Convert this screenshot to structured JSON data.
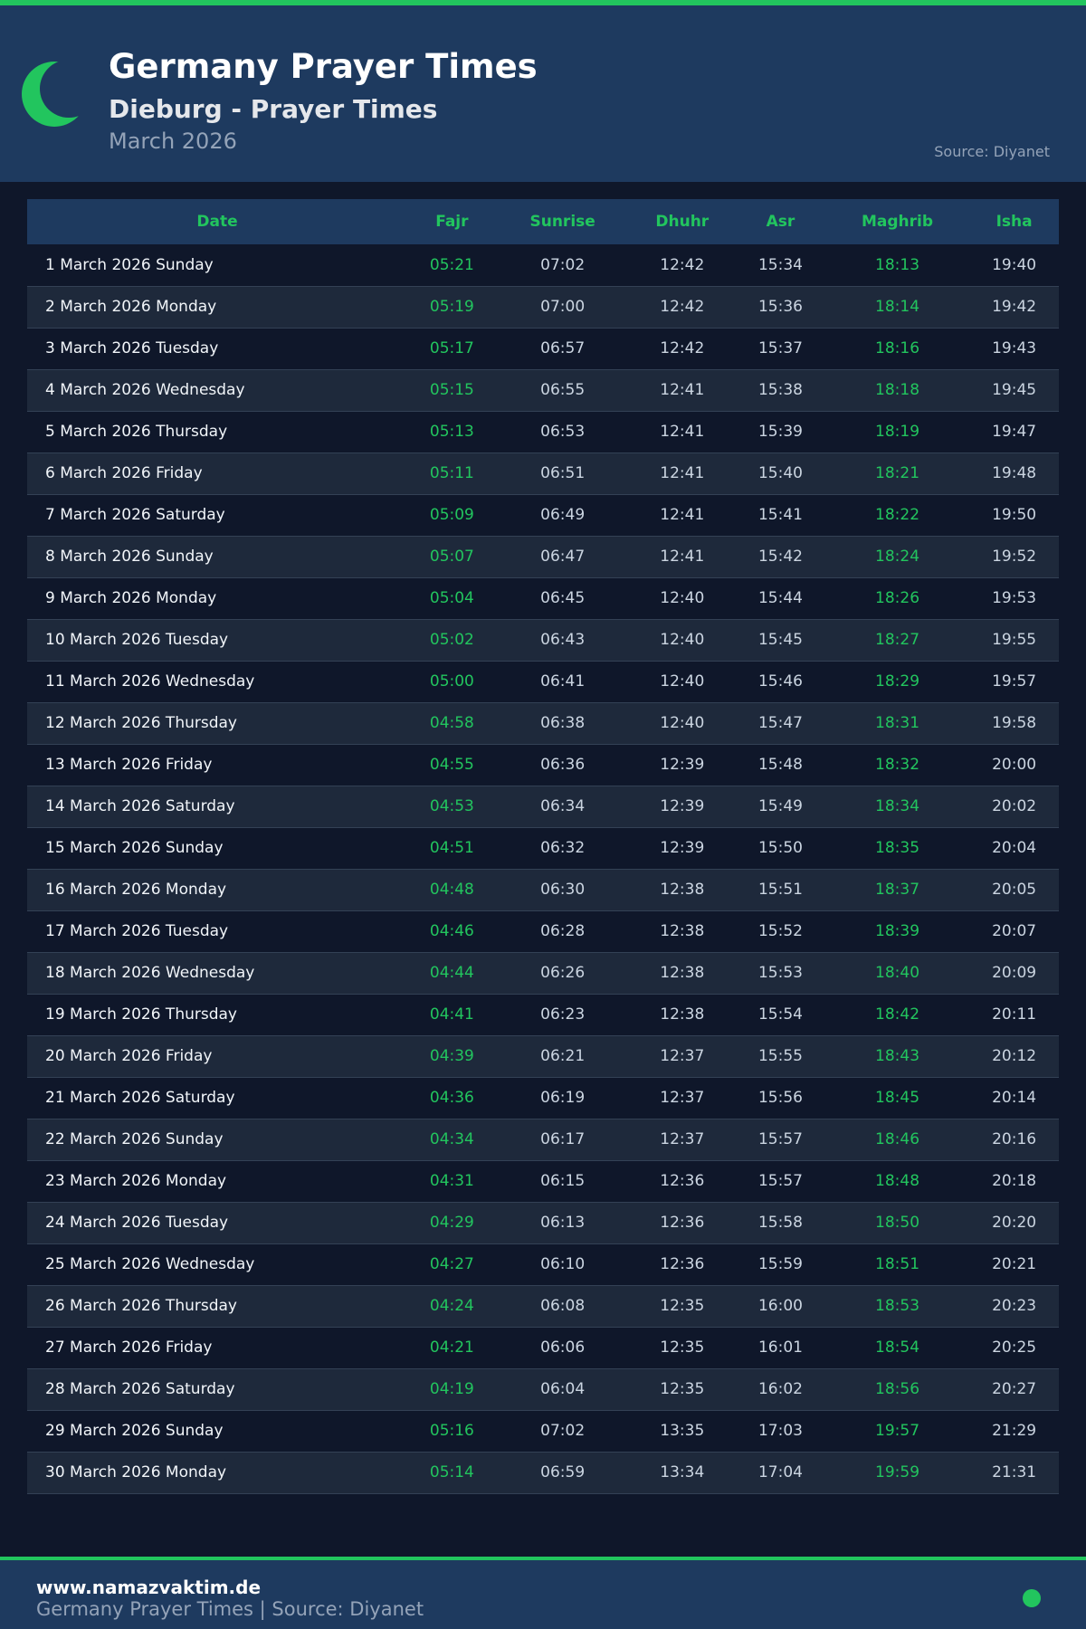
{
  "header": {
    "title": "Germany Prayer Times",
    "subtitle": "Dieburg - Prayer Times",
    "month": "March 2026",
    "source": "Source: Diyanet",
    "icon": "crescent-moon-icon"
  },
  "colors": {
    "accent": "#22c55e",
    "header_bg": "#1e3a5f",
    "page_bg": "#0f172a"
  },
  "table": {
    "columns": [
      "Date",
      "Fajr",
      "Sunrise",
      "Dhuhr",
      "Asr",
      "Maghrib",
      "Isha"
    ],
    "rows": [
      [
        "1 March 2026 Sunday",
        "05:21",
        "07:02",
        "12:42",
        "15:34",
        "18:13",
        "19:40"
      ],
      [
        "2 March 2026 Monday",
        "05:19",
        "07:00",
        "12:42",
        "15:36",
        "18:14",
        "19:42"
      ],
      [
        "3 March 2026 Tuesday",
        "05:17",
        "06:57",
        "12:42",
        "15:37",
        "18:16",
        "19:43"
      ],
      [
        "4 March 2026 Wednesday",
        "05:15",
        "06:55",
        "12:41",
        "15:38",
        "18:18",
        "19:45"
      ],
      [
        "5 March 2026 Thursday",
        "05:13",
        "06:53",
        "12:41",
        "15:39",
        "18:19",
        "19:47"
      ],
      [
        "6 March 2026 Friday",
        "05:11",
        "06:51",
        "12:41",
        "15:40",
        "18:21",
        "19:48"
      ],
      [
        "7 March 2026 Saturday",
        "05:09",
        "06:49",
        "12:41",
        "15:41",
        "18:22",
        "19:50"
      ],
      [
        "8 March 2026 Sunday",
        "05:07",
        "06:47",
        "12:41",
        "15:42",
        "18:24",
        "19:52"
      ],
      [
        "9 March 2026 Monday",
        "05:04",
        "06:45",
        "12:40",
        "15:44",
        "18:26",
        "19:53"
      ],
      [
        "10 March 2026 Tuesday",
        "05:02",
        "06:43",
        "12:40",
        "15:45",
        "18:27",
        "19:55"
      ],
      [
        "11 March 2026 Wednesday",
        "05:00",
        "06:41",
        "12:40",
        "15:46",
        "18:29",
        "19:57"
      ],
      [
        "12 March 2026 Thursday",
        "04:58",
        "06:38",
        "12:40",
        "15:47",
        "18:31",
        "19:58"
      ],
      [
        "13 March 2026 Friday",
        "04:55",
        "06:36",
        "12:39",
        "15:48",
        "18:32",
        "20:00"
      ],
      [
        "14 March 2026 Saturday",
        "04:53",
        "06:34",
        "12:39",
        "15:49",
        "18:34",
        "20:02"
      ],
      [
        "15 March 2026 Sunday",
        "04:51",
        "06:32",
        "12:39",
        "15:50",
        "18:35",
        "20:04"
      ],
      [
        "16 March 2026 Monday",
        "04:48",
        "06:30",
        "12:38",
        "15:51",
        "18:37",
        "20:05"
      ],
      [
        "17 March 2026 Tuesday",
        "04:46",
        "06:28",
        "12:38",
        "15:52",
        "18:39",
        "20:07"
      ],
      [
        "18 March 2026 Wednesday",
        "04:44",
        "06:26",
        "12:38",
        "15:53",
        "18:40",
        "20:09"
      ],
      [
        "19 March 2026 Thursday",
        "04:41",
        "06:23",
        "12:38",
        "15:54",
        "18:42",
        "20:11"
      ],
      [
        "20 March 2026 Friday",
        "04:39",
        "06:21",
        "12:37",
        "15:55",
        "18:43",
        "20:12"
      ],
      [
        "21 March 2026 Saturday",
        "04:36",
        "06:19",
        "12:37",
        "15:56",
        "18:45",
        "20:14"
      ],
      [
        "22 March 2026 Sunday",
        "04:34",
        "06:17",
        "12:37",
        "15:57",
        "18:46",
        "20:16"
      ],
      [
        "23 March 2026 Monday",
        "04:31",
        "06:15",
        "12:36",
        "15:57",
        "18:48",
        "20:18"
      ],
      [
        "24 March 2026 Tuesday",
        "04:29",
        "06:13",
        "12:36",
        "15:58",
        "18:50",
        "20:20"
      ],
      [
        "25 March 2026 Wednesday",
        "04:27",
        "06:10",
        "12:36",
        "15:59",
        "18:51",
        "20:21"
      ],
      [
        "26 March 2026 Thursday",
        "04:24",
        "06:08",
        "12:35",
        "16:00",
        "18:53",
        "20:23"
      ],
      [
        "27 March 2026 Friday",
        "04:21",
        "06:06",
        "12:35",
        "16:01",
        "18:54",
        "20:25"
      ],
      [
        "28 March 2026 Saturday",
        "04:19",
        "06:04",
        "12:35",
        "16:02",
        "18:56",
        "20:27"
      ],
      [
        "29 March 2026 Sunday",
        "05:16",
        "07:02",
        "13:35",
        "17:03",
        "19:57",
        "21:29"
      ],
      [
        "30 March 2026 Monday",
        "05:14",
        "06:59",
        "13:34",
        "17:04",
        "19:59",
        "21:31"
      ]
    ]
  },
  "footer": {
    "site": "www.namazvaktim.de",
    "text": "Germany Prayer Times | Source: Diyanet"
  }
}
